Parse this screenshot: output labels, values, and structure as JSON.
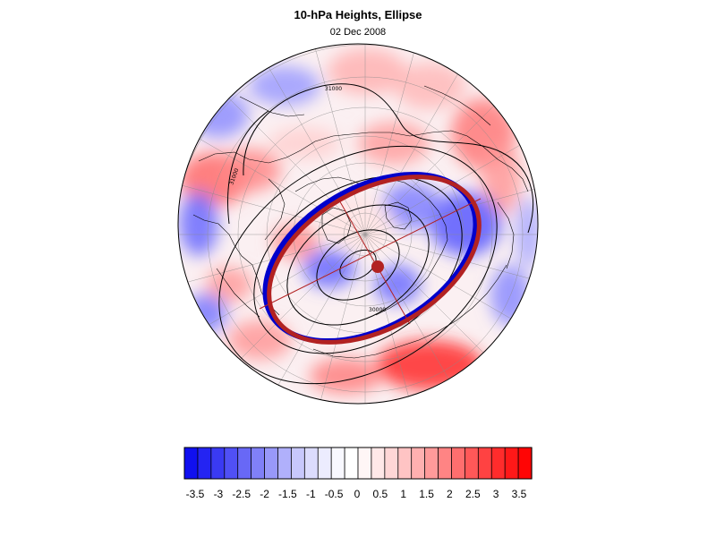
{
  "header": {
    "title": "10-hPa Heights, Ellipse",
    "date": "02 Dec 2008"
  },
  "map": {
    "projection": "north-polar-stereographic",
    "contour_labels": [
      "31000",
      "31000",
      "30000"
    ]
  },
  "colorbar": {
    "tick_labels": [
      "-3.5",
      "-3",
      "-2.5",
      "-2",
      "-1.5",
      "-1",
      "-0.5",
      "0",
      "0.5",
      "1",
      "1.5",
      "2",
      "2.5",
      "3",
      "3.5"
    ],
    "colors": [
      "#1010f0",
      "#2424f2",
      "#3a3af3",
      "#5050f5",
      "#6868f6",
      "#8080f8",
      "#9898f9",
      "#b0b0fb",
      "#c8c8fc",
      "#dcdcfd",
      "#ececfe",
      "#f8f8ff",
      "#ffffff",
      "#fff6f6",
      "#ffe8e8",
      "#ffd6d6",
      "#ffc4c4",
      "#ffb0b0",
      "#ff9a9a",
      "#ff8484",
      "#ff6e6e",
      "#ff5858",
      "#ff4242",
      "#ff2c2c",
      "#ff1818",
      "#ff0505"
    ]
  },
  "colors": {
    "ellipse": "#b22222",
    "vortex_edge": "#0000cc",
    "contours": "#000000",
    "grid": "#888888"
  }
}
